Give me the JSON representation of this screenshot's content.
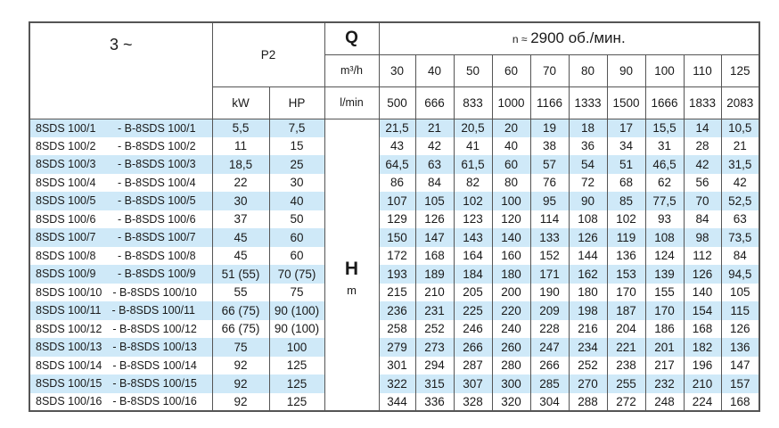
{
  "header": {
    "phase": "3 ~",
    "p2": "P2",
    "kw": "kW",
    "hp": "HP",
    "q": "Q",
    "q_unit_m3h": "m³/h",
    "q_unit_lmin": "l/min",
    "speed_prefix": "n ≈",
    "speed_value": "2900 об./мин.",
    "h": "H",
    "h_unit": "m",
    "flow_m3h": [
      "30",
      "40",
      "50",
      "60",
      "70",
      "80",
      "90",
      "100",
      "110",
      "125"
    ],
    "flow_lmin": [
      "500",
      "666",
      "833",
      "1000",
      "1166",
      "1333",
      "1500",
      "1666",
      "1833",
      "2083"
    ]
  },
  "colors": {
    "stripe": "#cfe9f8",
    "border": "#555555"
  },
  "rows": [
    {
      "model": "8SDS 100/1",
      "alt": "- B-8SDS 100/1",
      "kw": "5,5",
      "hp": "7,5",
      "h": [
        "21,5",
        "21",
        "20,5",
        "20",
        "19",
        "18",
        "17",
        "15,5",
        "14",
        "10,5"
      ]
    },
    {
      "model": "8SDS 100/2",
      "alt": "- B-8SDS 100/2",
      "kw": "11",
      "hp": "15",
      "h": [
        "43",
        "42",
        "41",
        "40",
        "38",
        "36",
        "34",
        "31",
        "28",
        "21"
      ]
    },
    {
      "model": "8SDS 100/3",
      "alt": "- B-8SDS 100/3",
      "kw": "18,5",
      "hp": "25",
      "h": [
        "64,5",
        "63",
        "61,5",
        "60",
        "57",
        "54",
        "51",
        "46,5",
        "42",
        "31,5"
      ]
    },
    {
      "model": "8SDS 100/4",
      "alt": "- B-8SDS 100/4",
      "kw": "22",
      "hp": "30",
      "h": [
        "86",
        "84",
        "82",
        "80",
        "76",
        "72",
        "68",
        "62",
        "56",
        "42"
      ]
    },
    {
      "model": "8SDS 100/5",
      "alt": "- B-8SDS 100/5",
      "kw": "30",
      "hp": "40",
      "h": [
        "107",
        "105",
        "102",
        "100",
        "95",
        "90",
        "85",
        "77,5",
        "70",
        "52,5"
      ]
    },
    {
      "model": "8SDS 100/6",
      "alt": "- B-8SDS 100/6",
      "kw": "37",
      "hp": "50",
      "h": [
        "129",
        "126",
        "123",
        "120",
        "114",
        "108",
        "102",
        "93",
        "84",
        "63"
      ]
    },
    {
      "model": "8SDS 100/7",
      "alt": "- B-8SDS 100/7",
      "kw": "45",
      "hp": "60",
      "h": [
        "150",
        "147",
        "143",
        "140",
        "133",
        "126",
        "119",
        "108",
        "98",
        "73,5"
      ]
    },
    {
      "model": "8SDS 100/8",
      "alt": "- B-8SDS 100/8",
      "kw": "45",
      "hp": "60",
      "h": [
        "172",
        "168",
        "164",
        "160",
        "152",
        "144",
        "136",
        "124",
        "112",
        "84"
      ]
    },
    {
      "model": "8SDS 100/9",
      "alt": "- B-8SDS 100/9",
      "kw": "51 (55)",
      "hp": "70 (75)",
      "h": [
        "193",
        "189",
        "184",
        "180",
        "171",
        "162",
        "153",
        "139",
        "126",
        "94,5"
      ]
    },
    {
      "model": "8SDS 100/10",
      "alt": "- B-8SDS 100/10",
      "kw": "55",
      "hp": "75",
      "h": [
        "215",
        "210",
        "205",
        "200",
        "190",
        "180",
        "170",
        "155",
        "140",
        "105"
      ]
    },
    {
      "model": "8SDS 100/11",
      "alt": "- B-8SDS 100/11",
      "kw": "66 (75)",
      "hp": "90 (100)",
      "h": [
        "236",
        "231",
        "225",
        "220",
        "209",
        "198",
        "187",
        "170",
        "154",
        "115"
      ]
    },
    {
      "model": "8SDS 100/12",
      "alt": "- B-8SDS 100/12",
      "kw": "66 (75)",
      "hp": "90 (100)",
      "h": [
        "258",
        "252",
        "246",
        "240",
        "228",
        "216",
        "204",
        "186",
        "168",
        "126"
      ]
    },
    {
      "model": "8SDS 100/13",
      "alt": "- B-8SDS 100/13",
      "kw": "75",
      "hp": "100",
      "h": [
        "279",
        "273",
        "266",
        "260",
        "247",
        "234",
        "221",
        "201",
        "182",
        "136"
      ]
    },
    {
      "model": "8SDS 100/14",
      "alt": "- B-8SDS 100/14",
      "kw": "92",
      "hp": "125",
      "h": [
        "301",
        "294",
        "287",
        "280",
        "266",
        "252",
        "238",
        "217",
        "196",
        "147"
      ]
    },
    {
      "model": "8SDS 100/15",
      "alt": "- B-8SDS 100/15",
      "kw": "92",
      "hp": "125",
      "h": [
        "322",
        "315",
        "307",
        "300",
        "285",
        "270",
        "255",
        "232",
        "210",
        "157"
      ]
    },
    {
      "model": "8SDS 100/16",
      "alt": "- B-8SDS 100/16",
      "kw": "92",
      "hp": "125",
      "h": [
        "344",
        "336",
        "328",
        "320",
        "304",
        "288",
        "272",
        "248",
        "224",
        "168"
      ]
    }
  ]
}
